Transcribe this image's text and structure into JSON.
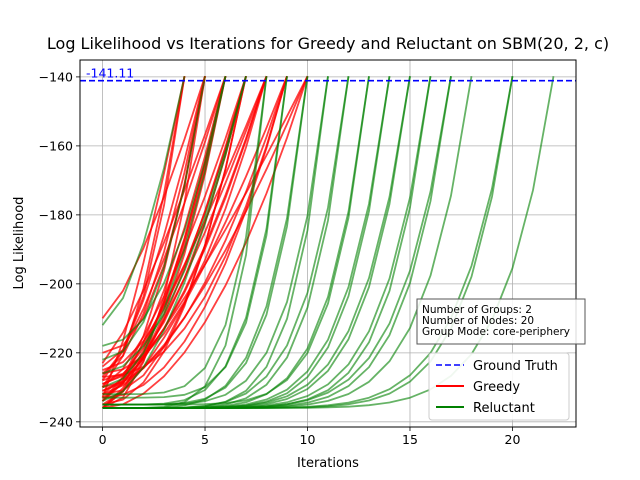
{
  "chart_data": {
    "type": "line",
    "title": "Log Likelihood vs Iterations for Greedy and Reluctant on SBM(20, 2, c)",
    "xlabel": "Iterations",
    "ylabel": "Log Likelihood",
    "xlim": [
      -1.1,
      23.1
    ],
    "ylim": [
      -241.5,
      -135.1
    ],
    "xticks": [
      0,
      5,
      10,
      15,
      20
    ],
    "yticks": [
      -240,
      -220,
      -200,
      -180,
      -160,
      -140
    ],
    "grid": true,
    "ground_truth": {
      "value": -141.11,
      "label": "-141.11",
      "color": "#0000ff"
    },
    "legend": {
      "placement": "lower-right",
      "entries": [
        {
          "name": "Ground Truth",
          "color": "#0000ff",
          "style": "dashed"
        },
        {
          "name": "Greedy",
          "color": "#ff0000",
          "style": "solid"
        },
        {
          "name": "Reluctant",
          "color": "#008000",
          "style": "solid"
        }
      ]
    },
    "info_box": [
      "Number of Groups: 2",
      "Number of Nodes: 20",
      "Group Mode: core-periphery"
    ],
    "series_groups": [
      {
        "name": "Greedy",
        "color": "#ff0000",
        "final": -139.8,
        "runs": [
          {
            "start": -233,
            "end_iter": 4
          },
          {
            "start": -230,
            "end_iter": 4
          },
          {
            "start": -224,
            "end_iter": 4
          },
          {
            "start": -210,
            "end_iter": 5
          },
          {
            "start": -226,
            "end_iter": 5
          },
          {
            "start": -236,
            "end_iter": 5
          },
          {
            "start": -228,
            "end_iter": 5
          },
          {
            "start": -232,
            "end_iter": 5
          },
          {
            "start": -220,
            "end_iter": 5
          },
          {
            "start": -234,
            "end_iter": 6
          },
          {
            "start": -229,
            "end_iter": 6
          },
          {
            "start": -223,
            "end_iter": 6
          },
          {
            "start": -236,
            "end_iter": 6
          },
          {
            "start": -231,
            "end_iter": 6
          },
          {
            "start": -227,
            "end_iter": 6
          },
          {
            "start": -233,
            "end_iter": 6
          },
          {
            "start": -235,
            "end_iter": 7
          },
          {
            "start": -230,
            "end_iter": 7
          },
          {
            "start": -225,
            "end_iter": 7
          },
          {
            "start": -232,
            "end_iter": 7
          },
          {
            "start": -236,
            "end_iter": 7
          },
          {
            "start": -228,
            "end_iter": 7
          },
          {
            "start": -234,
            "end_iter": 8
          },
          {
            "start": -231,
            "end_iter": 8
          },
          {
            "start": -226,
            "end_iter": 8
          },
          {
            "start": -236,
            "end_iter": 8
          },
          {
            "start": -229,
            "end_iter": 8
          },
          {
            "start": -233,
            "end_iter": 9
          },
          {
            "start": -235,
            "end_iter": 9
          },
          {
            "start": -230,
            "end_iter": 9
          },
          {
            "start": -227,
            "end_iter": 9
          },
          {
            "start": -232,
            "end_iter": 10
          },
          {
            "start": -236,
            "end_iter": 10
          },
          {
            "start": -234,
            "end_iter": 10
          }
        ]
      },
      {
        "name": "Reluctant",
        "color": "#008000",
        "final": -139.8,
        "runs": [
          {
            "start": -212,
            "end_iter": 4
          },
          {
            "start": -222,
            "end_iter": 5
          },
          {
            "start": -218,
            "end_iter": 6
          },
          {
            "start": -230,
            "end_iter": 6
          },
          {
            "start": -226,
            "end_iter": 7
          },
          {
            "start": -234,
            "end_iter": 7
          },
          {
            "start": -232,
            "end_iter": 8
          },
          {
            "start": -236,
            "end_iter": 8
          },
          {
            "start": -235,
            "end_iter": 9
          },
          {
            "start": -233,
            "end_iter": 9
          },
          {
            "start": -236,
            "end_iter": 10
          },
          {
            "start": -235,
            "end_iter": 10
          },
          {
            "start": -236,
            "end_iter": 11
          },
          {
            "start": -235,
            "end_iter": 11
          },
          {
            "start": -236,
            "end_iter": 12
          },
          {
            "start": -236,
            "end_iter": 12
          },
          {
            "start": -236,
            "end_iter": 13
          },
          {
            "start": -235,
            "end_iter": 13
          },
          {
            "start": -236,
            "end_iter": 14
          },
          {
            "start": -236,
            "end_iter": 14
          },
          {
            "start": -236,
            "end_iter": 15
          },
          {
            "start": -236,
            "end_iter": 15
          },
          {
            "start": -236,
            "end_iter": 16
          },
          {
            "start": -236,
            "end_iter": 16
          },
          {
            "start": -236,
            "end_iter": 17
          },
          {
            "start": -236,
            "end_iter": 17
          },
          {
            "start": -236,
            "end_iter": 18
          },
          {
            "start": -236,
            "end_iter": 20
          },
          {
            "start": -236,
            "end_iter": 20
          },
          {
            "start": -236,
            "end_iter": 22
          }
        ]
      }
    ]
  }
}
